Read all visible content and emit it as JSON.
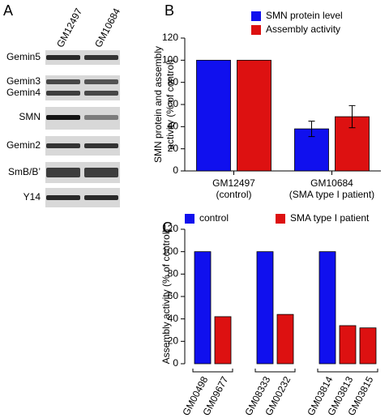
{
  "panels": {
    "a": "A",
    "b": "B",
    "c": "C"
  },
  "blot": {
    "lanes": [
      "GM12497",
      "GM10684"
    ],
    "rows": [
      "Gemin5",
      "Gemin3",
      "Gemin4",
      "SMN",
      "Gemin2",
      "SmB/B’",
      "Y14"
    ]
  },
  "chart_data": [
    {
      "type": "bar",
      "ylabel": [
        "SMN protein and assembly",
        "activity (% of control)"
      ],
      "categories": [
        [
          "GM12497",
          "(control)"
        ],
        [
          "GM10684",
          "(SMA type I patient)"
        ]
      ],
      "series": [
        {
          "name": "SMN protein level",
          "color": "#1010ee",
          "values": [
            100,
            38
          ],
          "errors": [
            null,
            7
          ]
        },
        {
          "name": "Assembly activity",
          "color": "#dd1111",
          "values": [
            100,
            49
          ],
          "errors": [
            null,
            10
          ]
        }
      ],
      "ylim": [
        0,
        120
      ],
      "yticks": [
        0,
        20,
        40,
        60,
        80,
        100,
        120
      ],
      "legend": "top"
    },
    {
      "type": "bar",
      "ylabel": [
        "Assembly activity (% of control)"
      ],
      "categories": [
        "GM00498",
        "GM09677",
        "GM08333",
        "GM00232",
        "GM03814",
        "GM03813",
        "GM03815"
      ],
      "series": [
        {
          "name": "control",
          "color": "#1010ee",
          "values": [
            100,
            null,
            100,
            null,
            100,
            null,
            null
          ]
        },
        {
          "name": "SMA type I patient",
          "color": "#dd1111",
          "values": [
            null,
            42,
            null,
            44,
            null,
            34,
            32
          ]
        }
      ],
      "ylim": [
        0,
        120
      ],
      "yticks": [
        0,
        20,
        40,
        60,
        80,
        100,
        120
      ],
      "legend": "top"
    }
  ]
}
